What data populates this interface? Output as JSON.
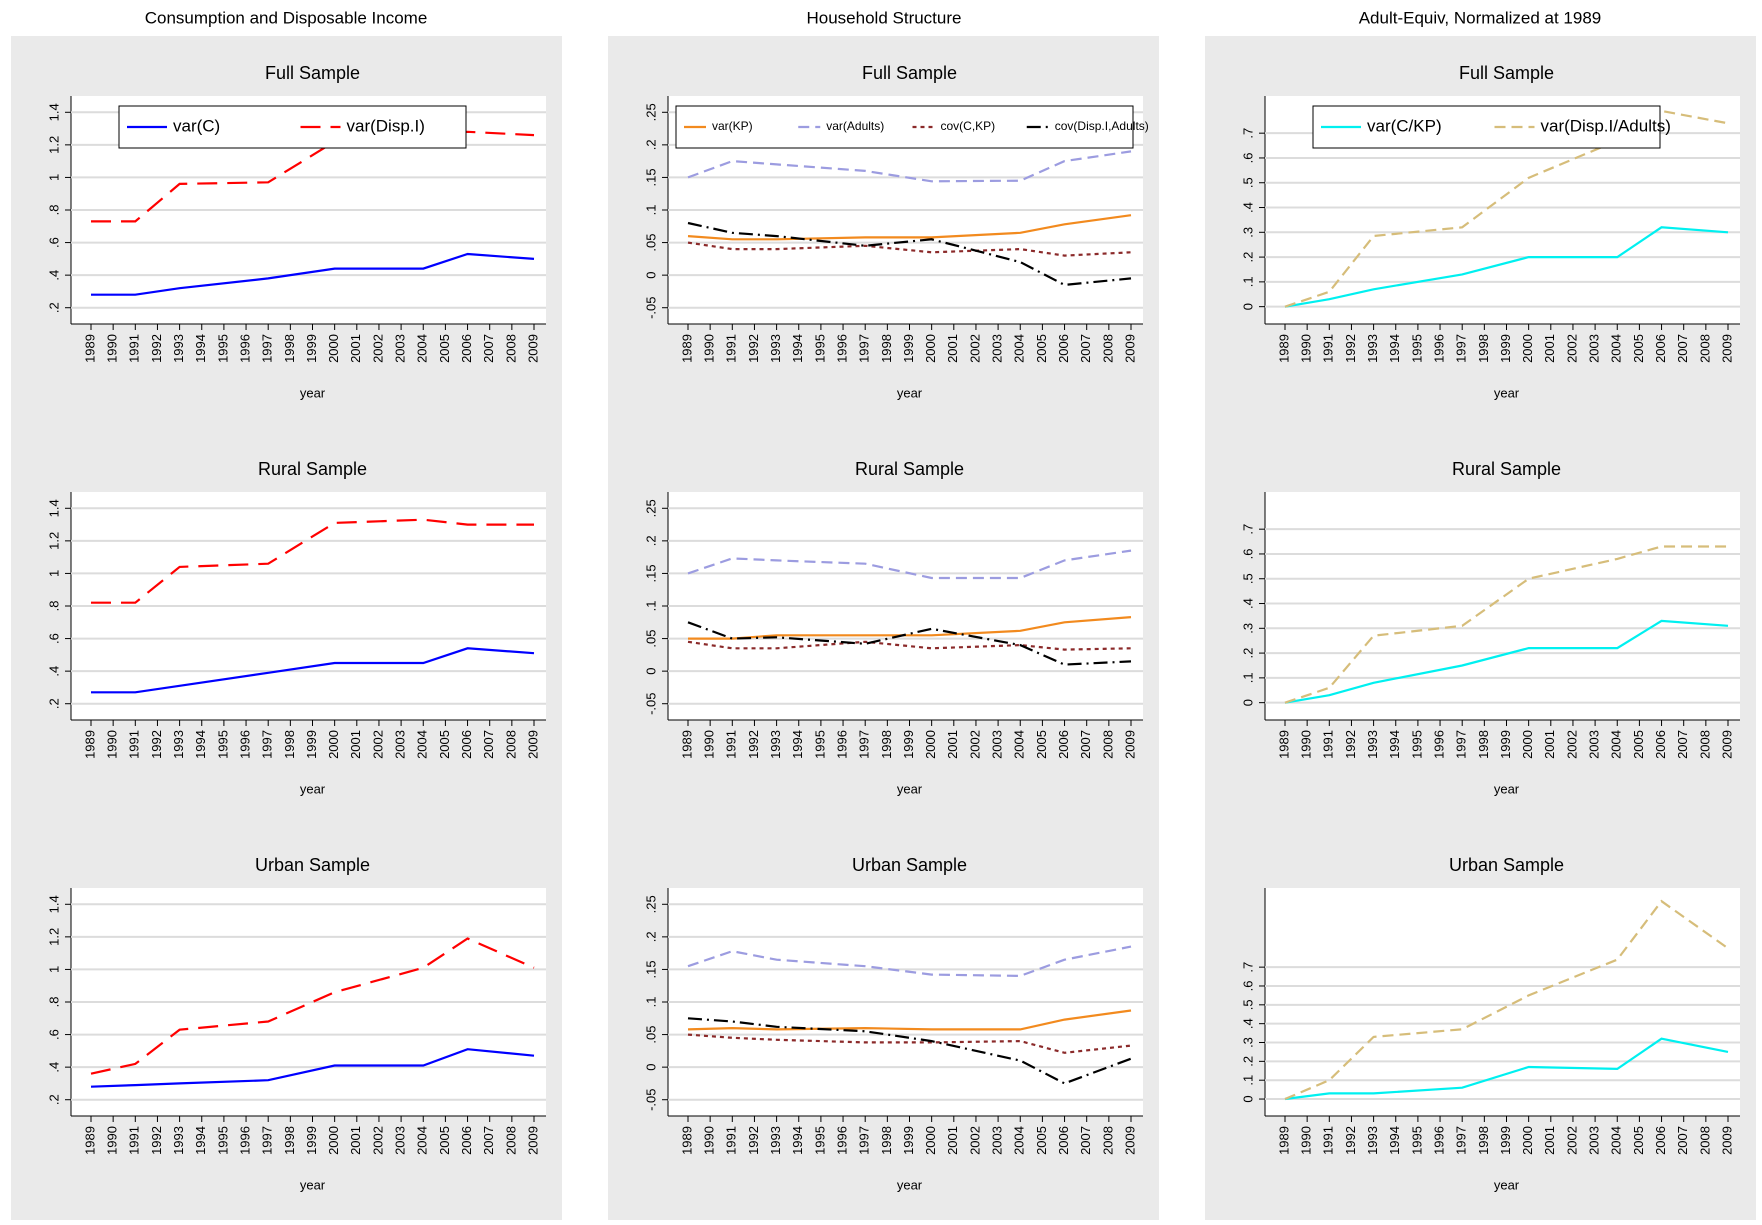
{
  "column_titles": [
    "Consumption and Disposable Income",
    "Household Structure",
    "Adult-Equiv, Normalized at 1989"
  ],
  "chart_data": [
    {
      "type": "line",
      "title": "Full Sample",
      "x_label": "year",
      "legend": "top",
      "x": [
        1989,
        1991,
        1993,
        1997,
        2000,
        2004,
        2006,
        2009
      ],
      "xlim": [
        1989,
        2009
      ],
      "xticks": [
        1989,
        1990,
        1991,
        1992,
        1993,
        1994,
        1995,
        1996,
        1997,
        1998,
        1999,
        2000,
        2001,
        2002,
        2003,
        2004,
        2005,
        2006,
        2007,
        2008,
        2009
      ],
      "ylim": [
        0.1,
        1.5
      ],
      "yticks": [
        {
          "value": 0.2,
          "label": ".2"
        },
        {
          "value": 0.4,
          "label": ".4"
        },
        {
          "value": 0.6,
          "label": ".6"
        },
        {
          "value": 0.8,
          "label": ".8"
        },
        1,
        1.2,
        1.4
      ],
      "grid": true,
      "series": [
        {
          "name": "var(C)",
          "color": "#0000ff",
          "dash": "solid",
          "values": [
            0.28,
            0.28,
            0.32,
            0.38,
            0.44,
            0.44,
            0.53,
            0.5
          ]
        },
        {
          "name": "var(Disp.I)",
          "color": "#ff0000",
          "dash": "longdash",
          "values": [
            0.73,
            0.73,
            0.96,
            0.97,
            1.22,
            1.25,
            1.28,
            1.26
          ]
        }
      ]
    },
    {
      "type": "line",
      "title": "Full Sample",
      "x_label": "year",
      "legend": "top",
      "x": [
        1989,
        1991,
        1993,
        1997,
        2000,
        2004,
        2006,
        2009
      ],
      "xlim": [
        1989,
        2009
      ],
      "xticks": [
        1989,
        1990,
        1991,
        1992,
        1993,
        1994,
        1995,
        1996,
        1997,
        1998,
        1999,
        2000,
        2001,
        2002,
        2003,
        2004,
        2005,
        2006,
        2007,
        2008,
        2009
      ],
      "ylim": [
        -0.075,
        0.275
      ],
      "yticks": [
        {
          "value": -0.05,
          "label": "-.05"
        },
        0,
        {
          "value": 0.05,
          "label": ".05"
        },
        {
          "value": 0.1,
          "label": ".1"
        },
        {
          "value": 0.15,
          "label": ".15"
        },
        {
          "value": 0.2,
          "label": ".2"
        },
        {
          "value": 0.25,
          "label": ".25"
        }
      ],
      "grid": true,
      "series": [
        {
          "name": "var(KP)",
          "color": "#f28a1e",
          "dash": "solid",
          "values": [
            0.06,
            0.055,
            0.055,
            0.058,
            0.058,
            0.065,
            0.078,
            0.092
          ]
        },
        {
          "name": "var(Adults)",
          "color": "#9c9ce0",
          "dash": "dash",
          "values": [
            0.15,
            0.175,
            0.17,
            0.16,
            0.144,
            0.145,
            0.175,
            0.19
          ]
        },
        {
          "name": "cov(C,KP)",
          "color": "#8b2a2a",
          "dash": "shortdash",
          "values": [
            0.05,
            0.04,
            0.04,
            0.045,
            0.035,
            0.04,
            0.03,
            0.035
          ]
        },
        {
          "name": "cov(Disp.I,Adults)",
          "color": "#000000",
          "dash": "dashdot",
          "values": [
            0.08,
            0.065,
            0.06,
            0.045,
            0.055,
            0.02,
            -0.015,
            -0.005
          ]
        }
      ]
    },
    {
      "type": "line",
      "title": "Full Sample",
      "x_label": "year",
      "legend": "top",
      "x": [
        1989,
        1991,
        1993,
        1997,
        2000,
        2004,
        2006,
        2009
      ],
      "xlim": [
        1989,
        2009
      ],
      "xticks": [
        1989,
        1990,
        1991,
        1992,
        1993,
        1994,
        1995,
        1996,
        1997,
        1998,
        1999,
        2000,
        2001,
        2002,
        2003,
        2004,
        2005,
        2006,
        2007,
        2008,
        2009
      ],
      "ylim": [
        -0.07,
        0.85
      ],
      "yticks": [
        0,
        {
          "value": 0.1,
          "label": ".1"
        },
        {
          "value": 0.2,
          "label": ".2"
        },
        {
          "value": 0.3,
          "label": ".3"
        },
        {
          "value": 0.4,
          "label": ".4"
        },
        {
          "value": 0.5,
          "label": ".5"
        },
        {
          "value": 0.6,
          "label": ".6"
        },
        {
          "value": 0.7,
          "label": ".7"
        }
      ],
      "grid": true,
      "series": [
        {
          "name": "var(C/KP)",
          "color": "#00f0f0",
          "dash": "solid",
          "values": [
            0,
            0.03,
            0.07,
            0.13,
            0.2,
            0.2,
            0.32,
            0.3
          ]
        },
        {
          "name": "var(Disp.I/Adults)",
          "color": "#d6bd7a",
          "dash": "dash",
          "values": [
            0,
            0.06,
            0.285,
            0.32,
            0.52,
            0.67,
            0.79,
            0.74
          ]
        }
      ]
    },
    {
      "type": "line",
      "title": "Rural Sample",
      "x_label": "year",
      "x": [
        1989,
        1991,
        1993,
        1997,
        2000,
        2004,
        2006,
        2009
      ],
      "xlim": [
        1989,
        2009
      ],
      "xticks": [
        1989,
        1990,
        1991,
        1992,
        1993,
        1994,
        1995,
        1996,
        1997,
        1998,
        1999,
        2000,
        2001,
        2002,
        2003,
        2004,
        2005,
        2006,
        2007,
        2008,
        2009
      ],
      "ylim": [
        0.1,
        1.5
      ],
      "yticks": [
        {
          "value": 0.2,
          "label": ".2"
        },
        {
          "value": 0.4,
          "label": ".4"
        },
        {
          "value": 0.6,
          "label": ".6"
        },
        {
          "value": 0.8,
          "label": ".8"
        },
        1,
        1.2,
        1.4
      ],
      "grid": true,
      "series": [
        {
          "color": "#0000ff",
          "dash": "solid",
          "values": [
            0.27,
            0.27,
            0.31,
            0.39,
            0.45,
            0.45,
            0.54,
            0.51
          ]
        },
        {
          "color": "#ff0000",
          "dash": "longdash",
          "values": [
            0.82,
            0.82,
            1.04,
            1.06,
            1.31,
            1.33,
            1.3,
            1.3
          ]
        }
      ]
    },
    {
      "type": "line",
      "title": "Rural Sample",
      "x_label": "year",
      "x": [
        1989,
        1991,
        1993,
        1997,
        2000,
        2004,
        2006,
        2009
      ],
      "xlim": [
        1989,
        2009
      ],
      "xticks": [
        1989,
        1990,
        1991,
        1992,
        1993,
        1994,
        1995,
        1996,
        1997,
        1998,
        1999,
        2000,
        2001,
        2002,
        2003,
        2004,
        2005,
        2006,
        2007,
        2008,
        2009
      ],
      "ylim": [
        -0.075,
        0.275
      ],
      "yticks": [
        {
          "value": -0.05,
          "label": "-.05"
        },
        0,
        {
          "value": 0.05,
          "label": ".05"
        },
        {
          "value": 0.1,
          "label": ".1"
        },
        {
          "value": 0.15,
          "label": ".15"
        },
        {
          "value": 0.2,
          "label": ".2"
        },
        {
          "value": 0.25,
          "label": ".25"
        }
      ],
      "grid": true,
      "series": [
        {
          "color": "#f28a1e",
          "dash": "solid",
          "values": [
            0.05,
            0.05,
            0.055,
            0.055,
            0.055,
            0.062,
            0.075,
            0.083
          ]
        },
        {
          "color": "#9c9ce0",
          "dash": "dash",
          "values": [
            0.15,
            0.173,
            0.17,
            0.165,
            0.143,
            0.143,
            0.17,
            0.185
          ]
        },
        {
          "color": "#8b2a2a",
          "dash": "shortdash",
          "values": [
            0.045,
            0.035,
            0.035,
            0.045,
            0.035,
            0.04,
            0.033,
            0.035
          ]
        },
        {
          "color": "#000000",
          "dash": "dashdot",
          "values": [
            0.075,
            0.05,
            0.052,
            0.042,
            0.065,
            0.04,
            0.01,
            0.015
          ]
        }
      ]
    },
    {
      "type": "line",
      "title": "Rural Sample",
      "x_label": "year",
      "x": [
        1989,
        1991,
        1993,
        1997,
        2000,
        2004,
        2006,
        2009
      ],
      "xlim": [
        1989,
        2009
      ],
      "xticks": [
        1989,
        1990,
        1991,
        1992,
        1993,
        1994,
        1995,
        1996,
        1997,
        1998,
        1999,
        2000,
        2001,
        2002,
        2003,
        2004,
        2005,
        2006,
        2007,
        2008,
        2009
      ],
      "ylim": [
        -0.07,
        0.85
      ],
      "yticks": [
        0,
        {
          "value": 0.1,
          "label": ".1"
        },
        {
          "value": 0.2,
          "label": ".2"
        },
        {
          "value": 0.3,
          "label": ".3"
        },
        {
          "value": 0.4,
          "label": ".4"
        },
        {
          "value": 0.5,
          "label": ".5"
        },
        {
          "value": 0.6,
          "label": ".6"
        },
        {
          "value": 0.7,
          "label": ".7"
        }
      ],
      "grid": true,
      "series": [
        {
          "color": "#00f0f0",
          "dash": "solid",
          "values": [
            0,
            0.03,
            0.08,
            0.15,
            0.22,
            0.22,
            0.33,
            0.31
          ]
        },
        {
          "color": "#d6bd7a",
          "dash": "dash",
          "values": [
            0,
            0.06,
            0.27,
            0.31,
            0.5,
            0.58,
            0.63,
            0.63
          ]
        }
      ]
    },
    {
      "type": "line",
      "title": "Urban Sample",
      "x_label": "year",
      "x": [
        1989,
        1991,
        1993,
        1997,
        2000,
        2004,
        2006,
        2009
      ],
      "xlim": [
        1989,
        2009
      ],
      "xticks": [
        1989,
        1990,
        1991,
        1992,
        1993,
        1994,
        1995,
        1996,
        1997,
        1998,
        1999,
        2000,
        2001,
        2002,
        2003,
        2004,
        2005,
        2006,
        2007,
        2008,
        2009
      ],
      "ylim": [
        0.1,
        1.5
      ],
      "yticks": [
        {
          "value": 0.2,
          "label": ".2"
        },
        {
          "value": 0.4,
          "label": ".4"
        },
        {
          "value": 0.6,
          "label": ".6"
        },
        {
          "value": 0.8,
          "label": ".8"
        },
        1,
        1.2,
        1.4
      ],
      "grid": true,
      "series": [
        {
          "color": "#0000ff",
          "dash": "solid",
          "values": [
            0.28,
            0.29,
            0.3,
            0.32,
            0.41,
            0.41,
            0.51,
            0.47
          ]
        },
        {
          "color": "#ff0000",
          "dash": "longdash",
          "values": [
            0.36,
            0.42,
            0.63,
            0.68,
            0.86,
            1.01,
            1.19,
            1.01
          ]
        }
      ]
    },
    {
      "type": "line",
      "title": "Urban Sample",
      "x_label": "year",
      "x": [
        1989,
        1991,
        1993,
        1997,
        2000,
        2004,
        2006,
        2009
      ],
      "xlim": [
        1989,
        2009
      ],
      "xticks": [
        1989,
        1990,
        1991,
        1992,
        1993,
        1994,
        1995,
        1996,
        1997,
        1998,
        1999,
        2000,
        2001,
        2002,
        2003,
        2004,
        2005,
        2006,
        2007,
        2008,
        2009
      ],
      "ylim": [
        -0.075,
        0.275
      ],
      "yticks": [
        {
          "value": -0.05,
          "label": "-.05"
        },
        0,
        {
          "value": 0.05,
          "label": ".05"
        },
        {
          "value": 0.1,
          "label": ".1"
        },
        {
          "value": 0.15,
          "label": ".15"
        },
        {
          "value": 0.2,
          "label": ".2"
        },
        {
          "value": 0.25,
          "label": ".25"
        }
      ],
      "grid": true,
      "series": [
        {
          "color": "#f28a1e",
          "dash": "solid",
          "values": [
            0.058,
            0.06,
            0.058,
            0.06,
            0.058,
            0.058,
            0.073,
            0.087
          ]
        },
        {
          "color": "#9c9ce0",
          "dash": "dash",
          "values": [
            0.155,
            0.178,
            0.165,
            0.155,
            0.142,
            0.14,
            0.165,
            0.185
          ]
        },
        {
          "color": "#8b2a2a",
          "dash": "shortdash",
          "values": [
            0.05,
            0.045,
            0.042,
            0.038,
            0.038,
            0.04,
            0.022,
            0.033
          ]
        },
        {
          "color": "#000000",
          "dash": "dashdot",
          "values": [
            0.075,
            0.07,
            0.062,
            0.055,
            0.04,
            0.01,
            -0.025,
            0.013
          ]
        }
      ]
    },
    {
      "type": "line",
      "title": "Urban Sample",
      "x_label": "year",
      "x": [
        1989,
        1991,
        1993,
        1997,
        2000,
        2004,
        2006,
        2009
      ],
      "xlim": [
        1989,
        2009
      ],
      "xticks": [
        1989,
        1990,
        1991,
        1992,
        1993,
        1994,
        1995,
        1996,
        1997,
        1998,
        1999,
        2000,
        2001,
        2002,
        2003,
        2004,
        2005,
        2006,
        2007,
        2008,
        2009
      ],
      "ylim": [
        -0.09,
        1.12
      ],
      "yticks": [
        0,
        {
          "value": 0.1,
          "label": ".1"
        },
        {
          "value": 0.2,
          "label": ".2"
        },
        {
          "value": 0.3,
          "label": ".3"
        },
        {
          "value": 0.4,
          "label": ".4"
        },
        {
          "value": 0.5,
          "label": ".5"
        },
        {
          "value": 0.6,
          "label": ".6"
        },
        {
          "value": 0.7,
          "label": ".7"
        }
      ],
      "grid": true,
      "series": [
        {
          "color": "#00f0f0",
          "dash": "solid",
          "values": [
            0,
            0.03,
            0.03,
            0.06,
            0.17,
            0.16,
            0.32,
            0.25
          ]
        },
        {
          "color": "#d6bd7a",
          "dash": "dash",
          "values": [
            0,
            0.1,
            0.33,
            0.37,
            0.55,
            0.74,
            1.05,
            0.8
          ]
        }
      ]
    }
  ]
}
